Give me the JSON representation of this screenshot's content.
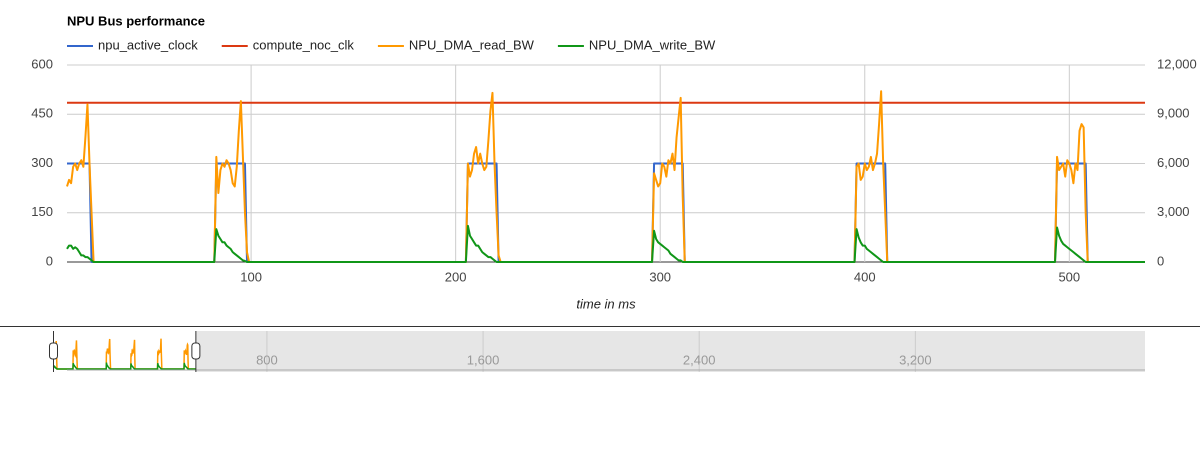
{
  "chart_data": {
    "type": "line",
    "title": "NPU Bus performance",
    "x_label": "time in ms",
    "xlim": [
      10,
      537
    ],
    "xticks": [
      100,
      200,
      300,
      400,
      500
    ],
    "ylim": [
      0,
      600
    ],
    "yticks": [
      0,
      150,
      300,
      450,
      600
    ],
    "y2lim": [
      0,
      12000
    ],
    "y2ticks": [
      0,
      {
        "value": 3000,
        "label": "3,000"
      },
      {
        "value": 6000,
        "label": "6,000"
      },
      {
        "value": 9000,
        "label": "9,000"
      },
      {
        "value": 12000,
        "label": "12,000"
      }
    ],
    "grid": true,
    "legend": "top",
    "x": [
      10,
      11,
      12,
      13,
      14,
      15,
      16,
      17,
      18,
      19,
      20,
      21,
      22,
      23,
      24,
      82,
      83,
      84,
      85,
      86,
      87,
      88,
      89,
      90,
      91,
      92,
      93,
      94,
      95,
      96,
      97,
      98,
      99,
      205,
      206,
      207,
      208,
      209,
      210,
      211,
      212,
      213,
      214,
      215,
      216,
      217,
      218,
      219,
      220,
      221,
      222,
      296,
      297,
      298,
      299,
      300,
      301,
      302,
      303,
      304,
      305,
      306,
      307,
      308,
      309,
      310,
      311,
      312,
      313,
      395,
      396,
      397,
      398,
      399,
      400,
      401,
      402,
      403,
      404,
      405,
      406,
      407,
      408,
      409,
      410,
      411,
      412,
      493,
      494,
      495,
      496,
      497,
      498,
      499,
      500,
      501,
      502,
      503,
      504,
      505,
      506,
      507,
      508,
      509,
      510,
      537
    ],
    "series": [
      {
        "name": "npu_active_clock",
        "color": "#3366cc",
        "values": [
          300,
          300,
          300,
          300,
          300,
          300,
          300,
          300,
          300,
          300,
          300,
          300,
          0,
          0,
          0,
          0,
          300,
          300,
          300,
          300,
          300,
          300,
          300,
          300,
          300,
          300,
          300,
          300,
          300,
          300,
          300,
          0,
          0,
          0,
          300,
          300,
          300,
          300,
          300,
          300,
          300,
          300,
          300,
          300,
          300,
          300,
          300,
          300,
          300,
          0,
          0,
          0,
          300,
          300,
          300,
          300,
          300,
          300,
          300,
          300,
          300,
          300,
          300,
          300,
          300,
          300,
          300,
          0,
          0,
          0,
          300,
          300,
          300,
          300,
          300,
          300,
          300,
          300,
          300,
          300,
          300,
          300,
          300,
          300,
          300,
          0,
          0,
          0,
          300,
          300,
          300,
          300,
          300,
          300,
          300,
          300,
          300,
          300,
          300,
          300,
          300,
          300,
          300,
          0,
          0,
          0
        ]
      },
      {
        "name": "compute_noc_clk",
        "color": "#dc3912",
        "values": [
          485,
          485,
          485,
          485,
          485,
          485,
          485,
          485,
          485,
          485,
          485,
          485,
          485,
          485,
          485,
          485,
          485,
          485,
          485,
          485,
          485,
          485,
          485,
          485,
          485,
          485,
          485,
          485,
          485,
          485,
          485,
          485,
          485,
          485,
          485,
          485,
          485,
          485,
          485,
          485,
          485,
          485,
          485,
          485,
          485,
          485,
          485,
          485,
          485,
          485,
          485,
          485,
          485,
          485,
          485,
          485,
          485,
          485,
          485,
          485,
          485,
          485,
          485,
          485,
          485,
          485,
          485,
          485,
          485,
          485,
          485,
          485,
          485,
          485,
          485,
          485,
          485,
          485,
          485,
          485,
          485,
          485,
          485,
          485,
          485,
          485,
          485,
          485,
          485,
          485,
          485,
          485,
          485,
          485,
          485,
          485,
          485,
          485,
          485,
          485,
          485,
          485,
          485,
          485,
          485,
          485
        ]
      },
      {
        "name": "NPU_DMA_read_BW",
        "color": "#ff9900",
        "axis": "y2",
        "values": [
          4600,
          5000,
          4800,
          5800,
          6000,
          5600,
          6000,
          6200,
          5800,
          7600,
          9600,
          6000,
          3000,
          0,
          0,
          0,
          6400,
          4200,
          5600,
          6000,
          5800,
          6200,
          6000,
          5600,
          4800,
          4600,
          5800,
          8000,
          9800,
          6400,
          3000,
          600,
          0,
          0,
          6000,
          5200,
          5600,
          6600,
          7000,
          6000,
          6600,
          6000,
          5600,
          5800,
          7400,
          9200,
          10300,
          6000,
          3000,
          400,
          0,
          0,
          5400,
          5000,
          4600,
          4800,
          6000,
          5800,
          5200,
          6200,
          6000,
          6600,
          5600,
          7600,
          8800,
          10000,
          4000,
          0,
          0,
          0,
          5800,
          6000,
          5000,
          5200,
          6000,
          5600,
          5800,
          6400,
          5600,
          6000,
          6600,
          8400,
          10400,
          6000,
          3000,
          0,
          0,
          0,
          6400,
          5600,
          5800,
          6000,
          5200,
          6200,
          6000,
          5600,
          4800,
          6000,
          5600,
          8000,
          8400,
          8200,
          3000,
          0,
          0,
          0
        ]
      },
      {
        "name": "NPU_DMA_write_BW",
        "color": "#109618",
        "axis": "y2",
        "values": [
          800,
          1000,
          1000,
          800,
          900,
          800,
          600,
          400,
          400,
          300,
          300,
          200,
          100,
          0,
          0,
          0,
          2000,
          1600,
          1400,
          1200,
          1200,
          1000,
          900,
          800,
          600,
          500,
          400,
          300,
          200,
          100,
          60,
          0,
          0,
          0,
          2200,
          1600,
          1400,
          1200,
          1000,
          1000,
          800,
          600,
          500,
          400,
          300,
          300,
          200,
          100,
          0,
          0,
          0,
          0,
          1900,
          1400,
          1200,
          1100,
          1000,
          900,
          800,
          700,
          500,
          400,
          300,
          200,
          100,
          100,
          0,
          0,
          0,
          0,
          2000,
          1500,
          1200,
          1000,
          1000,
          800,
          700,
          600,
          500,
          400,
          300,
          200,
          100,
          0,
          0,
          0,
          0,
          0,
          2100,
          1600,
          1300,
          1100,
          1000,
          900,
          800,
          700,
          600,
          500,
          400,
          300,
          200,
          100,
          0,
          0,
          0,
          0
        ]
      }
    ],
    "range_selector": {
      "xlim": [
        60,
        4050
      ],
      "xticks": [
        800,
        {
          "value": 1600,
          "label": "1,600"
        },
        {
          "value": 2400,
          "label": "2,400"
        },
        {
          "value": 3200,
          "label": "3,200"
        }
      ]
    }
  }
}
